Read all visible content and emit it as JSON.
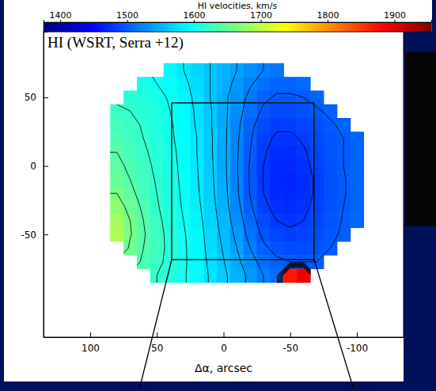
{
  "chart_data": {
    "type": "heatmap",
    "xlabel": "Δα, arcsec",
    "annotations": [
      "HI (WSRT, Serra +12)"
    ],
    "x": [
      80,
      70,
      60,
      50,
      40,
      30,
      20,
      10,
      0,
      -10,
      -20,
      -30,
      -40,
      -50,
      -60,
      -70,
      -80,
      -90,
      -100
    ],
    "y": [
      70,
      60,
      50,
      40,
      30,
      20,
      10,
      0,
      -10,
      -20,
      -30,
      -40,
      -50,
      -60,
      -70,
      -80
    ],
    "cells": [
      [
        null,
        null,
        null,
        null,
        1590,
        1580,
        1570,
        1560,
        1550,
        1540,
        1530,
        1520,
        1515,
        null,
        null,
        null,
        null,
        null,
        null
      ],
      [
        null,
        null,
        1605,
        1600,
        1595,
        1585,
        1572,
        1560,
        1548,
        1535,
        1522,
        1512,
        1505,
        1505,
        1508,
        null,
        null,
        null,
        null
      ],
      [
        null,
        1615,
        1610,
        1605,
        1598,
        1588,
        1575,
        1560,
        1545,
        1530,
        1515,
        1503,
        1498,
        1498,
        1500,
        1505,
        null,
        null,
        null
      ],
      [
        1625,
        1620,
        1615,
        1608,
        1600,
        1590,
        1577,
        1562,
        1545,
        1528,
        1510,
        1497,
        1490,
        1490,
        1493,
        1498,
        1503,
        null,
        null
      ],
      [
        1630,
        1625,
        1618,
        1610,
        1602,
        1592,
        1578,
        1562,
        1545,
        1525,
        1505,
        1490,
        1483,
        1483,
        1487,
        1493,
        1498,
        1503,
        null
      ],
      [
        1635,
        1628,
        1620,
        1612,
        1603,
        1593,
        1580,
        1563,
        1545,
        1523,
        1502,
        1485,
        1477,
        1477,
        1482,
        1490,
        1496,
        1500,
        1505
      ],
      [
        1640,
        1632,
        1623,
        1614,
        1605,
        1594,
        1580,
        1563,
        1545,
        1522,
        1500,
        1482,
        1473,
        1472,
        1478,
        1487,
        1494,
        1500,
        1505
      ],
      [
        1645,
        1636,
        1626,
        1616,
        1606,
        1595,
        1581,
        1564,
        1545,
        1521,
        1498,
        1480,
        1470,
        1470,
        1475,
        1485,
        1493,
        1500,
        1505
      ],
      [
        1650,
        1640,
        1629,
        1618,
        1607,
        1596,
        1582,
        1565,
        1546,
        1522,
        1498,
        1479,
        1469,
        1468,
        1473,
        1483,
        1492,
        1499,
        1505
      ],
      [
        1660,
        1645,
        1632,
        1620,
        1608,
        1597,
        1583,
        1566,
        1547,
        1523,
        1499,
        1480,
        1470,
        1469,
        1473,
        1483,
        1492,
        1499,
        1505
      ],
      [
        1672,
        1652,
        1636,
        1622,
        1610,
        1598,
        1585,
        1568,
        1549,
        1526,
        1503,
        1484,
        1474,
        1472,
        1476,
        1485,
        1493,
        1500,
        1505
      ],
      [
        1685,
        1660,
        1640,
        1625,
        1612,
        1600,
        1587,
        1570,
        1552,
        1530,
        1508,
        1490,
        1480,
        1477,
        1480,
        1488,
        1495,
        1501,
        1506
      ],
      [
        1690,
        1662,
        1642,
        1627,
        1614,
        1602,
        1589,
        1572,
        1555,
        1535,
        1513,
        1496,
        1487,
        1483,
        1485,
        1491,
        1497,
        1502,
        null
      ],
      [
        null,
        1655,
        1640,
        1627,
        1615,
        1603,
        1590,
        1574,
        1558,
        1540,
        1520,
        1503,
        1495,
        1490,
        1490,
        1495,
        1500,
        null,
        null
      ],
      [
        null,
        null,
        1635,
        1625,
        1614,
        1603,
        1591,
        1576,
        1561,
        1545,
        1528,
        1512,
        1503,
        1500,
        1497,
        1500,
        null,
        null,
        null
      ],
      [
        null,
        null,
        null,
        1620,
        1612,
        1602,
        1592,
        1578,
        1564,
        1550,
        1535,
        1520,
        1510,
        1870,
        1890,
        null,
        null,
        null,
        null
      ]
    ],
    "xlim": [
      135,
      -135
    ],
    "ylim": [
      -125,
      98
    ],
    "xticks": [
      100,
      50,
      0,
      -50,
      -100
    ],
    "yticks": [
      50,
      0,
      -50
    ],
    "contour_levels": [
      1480,
      1500,
      1520,
      1540,
      1560,
      1580,
      1600,
      1620,
      1640,
      1660
    ],
    "colorbar": {
      "label": "HI velocities, km/s",
      "range": [
        1375,
        1955
      ],
      "ticks": [
        1400,
        1500,
        1600,
        1700,
        1800,
        1900
      ]
    }
  }
}
